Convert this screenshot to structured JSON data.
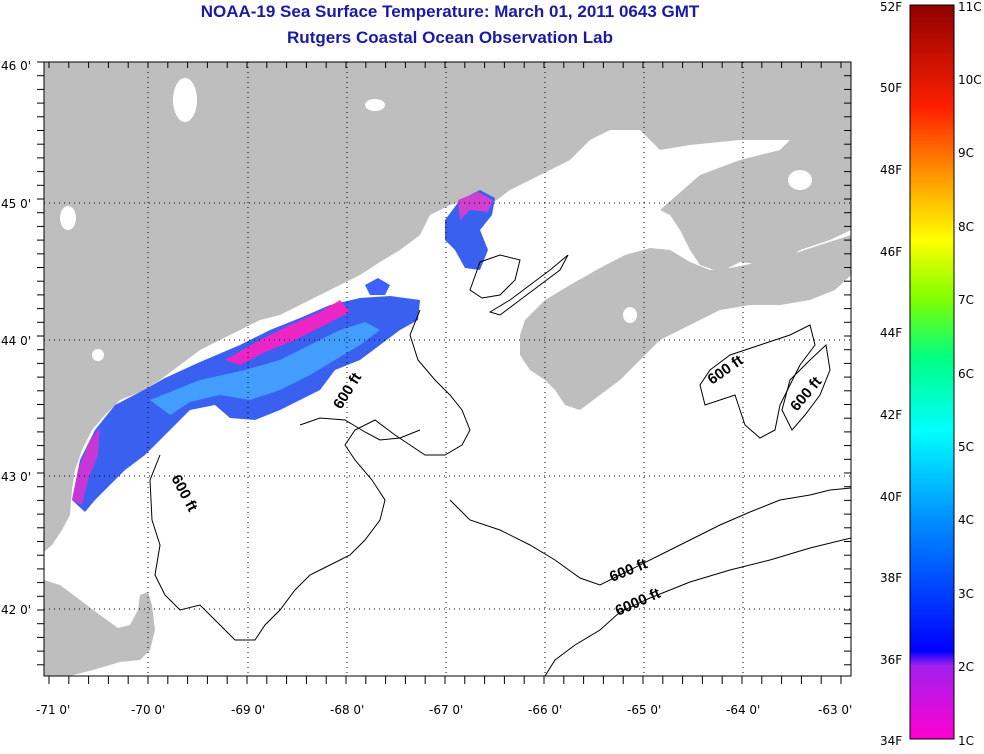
{
  "title": {
    "line1": "NOAA-19 Sea Surface Temperature:  March 01, 2011 0643 GMT",
    "line2": "Rutgers Coastal Ocean Observation Lab"
  },
  "axes": {
    "lat_ticks": [
      "46 0'",
      "45 0'",
      "44 0'",
      "43 0'",
      "42 0'"
    ],
    "lon_ticks": [
      "-71 0'",
      "-70 0'",
      "-69 0'",
      "-68 0'",
      "-67 0'",
      "-66 0'",
      "-65 0'",
      "-64 0'",
      "-63 0'"
    ]
  },
  "contour_labels": [
    {
      "text": "600 ft"
    },
    {
      "text": "600 ft"
    },
    {
      "text": "600 ft"
    },
    {
      "text": "600 ft"
    },
    {
      "text": "600 ft"
    },
    {
      "text": "6000 ft"
    }
  ],
  "colorbar": {
    "f_labels": [
      "52F",
      "50F",
      "48F",
      "46F",
      "44F",
      "42F",
      "40F",
      "38F",
      "36F",
      "34F"
    ],
    "c_labels": [
      "11C",
      "10C",
      "9C",
      "8C",
      "7C",
      "6C",
      "5C",
      "4C",
      "3C",
      "2C",
      "1C"
    ]
  },
  "colors": {
    "land": "#bebebe",
    "water": "#ffffff",
    "title": "#1a1aa6",
    "sst_cold": "#ff20c0",
    "sst_mid": "#3050ff",
    "sst_warm": "#40b0ff"
  }
}
